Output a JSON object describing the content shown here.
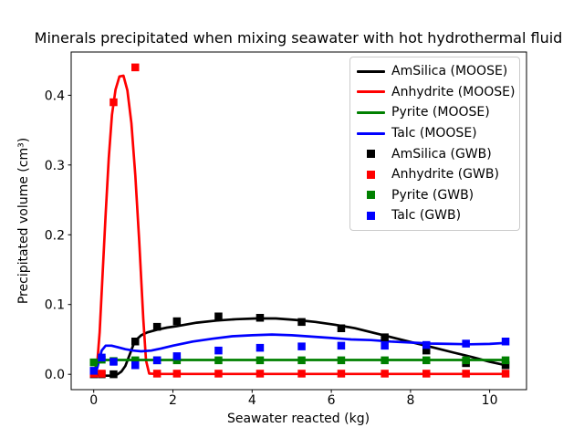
{
  "title": "Minerals precipitated when mixing seawater with hot hydrothermal fluid",
  "colors": {
    "amsilica": "#000000",
    "anhydrite": "#ff0000",
    "pyrite": "#008000",
    "talc": "#0000ff",
    "axis": "#000000",
    "background": "#ffffff",
    "legend_border": "#cbcbcb"
  },
  "chart_data": {
    "type": "line",
    "title": "Minerals precipitated when mixing seawater with hot hydrothermal fluid",
    "xlabel": "Seawater reacted (kg)",
    "ylabel": "Precipitated volume (cm³)",
    "xlim": [
      -0.57,
      10.93
    ],
    "ylim": [
      -0.022,
      0.462
    ],
    "xticks": [
      0,
      2,
      4,
      6,
      8,
      10
    ],
    "yticks": [
      0.0,
      0.1,
      0.2,
      0.3,
      0.4
    ],
    "grid": false,
    "legend_position": "upper right",
    "series": [
      {
        "name": "AmSilica (MOOSE)",
        "type": "line",
        "color": "#000000",
        "x": [
          0,
          0.15,
          0.3,
          0.45,
          0.6,
          0.7,
          0.8,
          0.9,
          1.0,
          1.1,
          1.2,
          1.35,
          1.6,
          1.85,
          2.1,
          2.6,
          3.1,
          3.6,
          4.1,
          4.6,
          5.1,
          5.6,
          6.1,
          6.6,
          7.1,
          7.6,
          8.1,
          8.6,
          9.1,
          9.6,
          10.0,
          10.4
        ],
        "y": [
          0,
          -0.001,
          -0.002,
          -0.002,
          0.0,
          0.004,
          0.012,
          0.027,
          0.042,
          0.051,
          0.056,
          0.06,
          0.064,
          0.067,
          0.069,
          0.074,
          0.077,
          0.079,
          0.08,
          0.08,
          0.078,
          0.075,
          0.071,
          0.066,
          0.059,
          0.052,
          0.045,
          0.038,
          0.031,
          0.024,
          0.018,
          0.013
        ]
      },
      {
        "name": "Anhydrite (MOOSE)",
        "type": "line",
        "color": "#ff0000",
        "x": [
          0,
          0.08,
          0.15,
          0.22,
          0.3,
          0.38,
          0.46,
          0.55,
          0.65,
          0.75,
          0.85,
          0.95,
          1.05,
          1.15,
          1.25,
          1.32,
          1.4,
          1.6,
          2.1,
          3.1,
          4.1,
          5.1,
          6.1,
          7.1,
          8.1,
          9.1,
          10.0,
          10.4
        ],
        "y": [
          0,
          0.01,
          0.06,
          0.14,
          0.23,
          0.31,
          0.372,
          0.408,
          0.427,
          0.428,
          0.407,
          0.36,
          0.285,
          0.19,
          0.08,
          0.02,
          0.001,
          0.0005,
          0.0005,
          0.0005,
          0.0005,
          0.0005,
          0.0005,
          0.0005,
          0.0005,
          0.0005,
          0.0005,
          0.0005
        ]
      },
      {
        "name": "Pyrite (MOOSE)",
        "type": "line",
        "color": "#008000",
        "x": [
          0,
          0.06,
          0.14,
          0.3,
          0.6,
          1.1,
          2.1,
          3.1,
          4.1,
          5.1,
          6.1,
          7.1,
          8.1,
          9.1,
          10.0,
          10.4
        ],
        "y": [
          0,
          0.013,
          0.0195,
          0.0205,
          0.0205,
          0.0205,
          0.0205,
          0.0205,
          0.0205,
          0.0205,
          0.0205,
          0.0205,
          0.0205,
          0.0205,
          0.0205,
          0.0205
        ]
      },
      {
        "name": "Talc (MOOSE)",
        "type": "line",
        "color": "#0000ff",
        "x": [
          0,
          0.06,
          0.12,
          0.2,
          0.3,
          0.45,
          0.6,
          0.8,
          1.0,
          1.2,
          1.45,
          1.7,
          2.0,
          2.5,
          3.0,
          3.5,
          4.0,
          4.5,
          5.0,
          5.5,
          6.0,
          6.5,
          7.0,
          7.5,
          8.0,
          8.5,
          9.0,
          9.5,
          10.0,
          10.4
        ],
        "y": [
          0,
          0.003,
          0.016,
          0.034,
          0.041,
          0.041,
          0.039,
          0.036,
          0.034,
          0.033,
          0.034,
          0.037,
          0.041,
          0.047,
          0.051,
          0.0545,
          0.056,
          0.057,
          0.056,
          0.054,
          0.052,
          0.05,
          0.049,
          0.047,
          0.0455,
          0.044,
          0.0435,
          0.043,
          0.0435,
          0.045
        ]
      },
      {
        "name": "AmSilica (GWB)",
        "type": "scatter",
        "marker": "square",
        "color": "#000000",
        "x": [
          0,
          0.2,
          0.5,
          1.05,
          1.6,
          2.1,
          3.15,
          4.2,
          5.25,
          6.25,
          7.35,
          8.4,
          9.4,
          10.4
        ],
        "y": [
          0,
          0,
          0,
          0.047,
          0.068,
          0.076,
          0.083,
          0.081,
          0.075,
          0.066,
          0.053,
          0.034,
          0.016,
          0.013
        ]
      },
      {
        "name": "Anhydrite (GWB)",
        "type": "scatter",
        "marker": "square",
        "color": "#ff0000",
        "x": [
          0,
          0.2,
          0.5,
          1.05,
          1.6,
          2.1,
          3.15,
          4.2,
          5.25,
          6.25,
          7.35,
          8.4,
          9.4,
          10.4
        ],
        "y": [
          0.001,
          0.001,
          0.39,
          0.44,
          0.001,
          0.001,
          0.001,
          0.001,
          0.001,
          0.001,
          0.001,
          0.001,
          0.001,
          0.001
        ]
      },
      {
        "name": "Pyrite (GWB)",
        "type": "scatter",
        "marker": "square",
        "color": "#008000",
        "x": [
          0,
          0.2,
          0.5,
          1.05,
          1.6,
          2.1,
          3.15,
          4.2,
          5.25,
          6.25,
          7.35,
          8.4,
          9.4,
          10.4
        ],
        "y": [
          0.017,
          0.021,
          0.019,
          0.02,
          0.02,
          0.02,
          0.02,
          0.02,
          0.02,
          0.02,
          0.02,
          0.02,
          0.02,
          0.02
        ]
      },
      {
        "name": "Talc (GWB)",
        "type": "scatter",
        "marker": "square",
        "color": "#0000ff",
        "x": [
          0,
          0.2,
          0.5,
          1.05,
          1.6,
          2.1,
          3.15,
          4.2,
          5.25,
          6.25,
          7.35,
          8.4,
          9.4,
          10.4
        ],
        "y": [
          0.005,
          0.024,
          0.018,
          0.013,
          0.02,
          0.026,
          0.034,
          0.038,
          0.04,
          0.041,
          0.041,
          0.042,
          0.044,
          0.047
        ]
      }
    ]
  }
}
